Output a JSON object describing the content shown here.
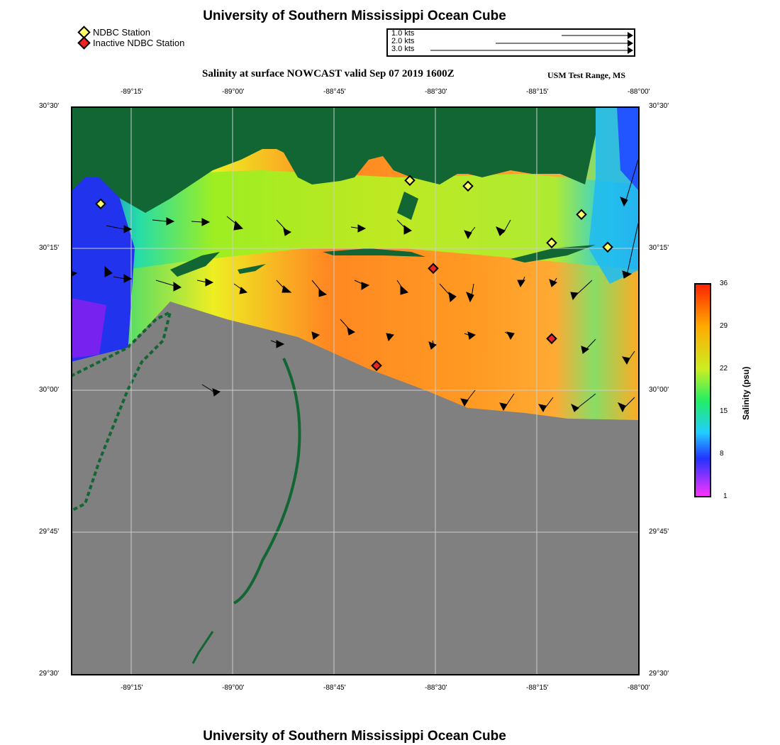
{
  "header": {
    "title": "University of Southern Mississippi Ocean Cube"
  },
  "legend": {
    "active": {
      "label": "NDBC Station",
      "color": "#ffff66"
    },
    "inactive": {
      "label": "Inactive NDBC Station",
      "color": "#ee2222"
    }
  },
  "scale": {
    "labels": [
      "1.0 kts",
      "2.0 kts",
      "3.0 kts"
    ]
  },
  "map": {
    "title": "Salinity at surface NOWCAST valid Sep 07 2019 1600Z",
    "subtitle": "USM Test Range, MS",
    "lon_labels": [
      "-89°15'",
      "-89°00'",
      "-88°45'",
      "-88°30'",
      "-88°15'",
      "-88°00'"
    ],
    "lat_labels": [
      "30°30'",
      "30°15'",
      "30°00'",
      "29°45'",
      "29°30'"
    ],
    "land_color": "#116633",
    "nodata_color": "#808080"
  },
  "colorbar": {
    "label": "Salinity (psu)",
    "ticks": [
      "36",
      "29",
      "22",
      "15",
      "8",
      "1"
    ]
  },
  "footer": {
    "title": "University of Southern Mississippi Ocean Cube"
  }
}
